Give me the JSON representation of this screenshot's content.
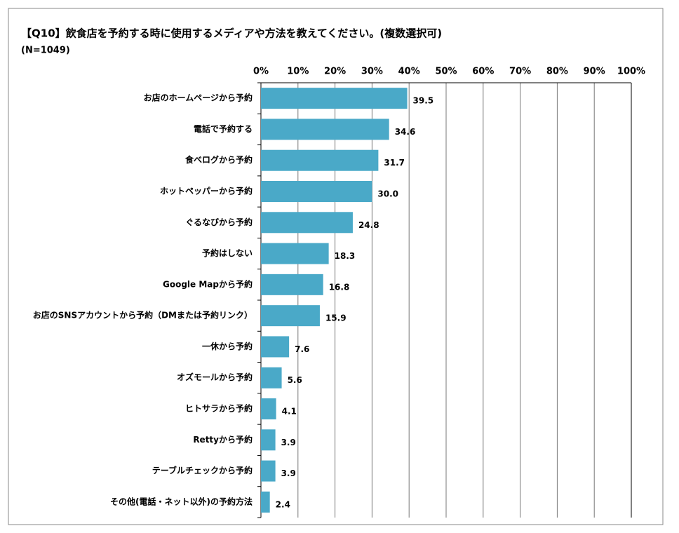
{
  "chart_data": {
    "type": "hbar",
    "title": "【Q10】飲食店を予約する時に使用するメディアや方法を教えてください。(複数選択可)",
    "subtitle": "(N=1049)",
    "categories": [
      "お店のホームページから予約",
      "電話で予約する",
      "食べログから予約",
      "ホットペッパーから予約",
      "ぐるなびから予約",
      "予約はしない",
      "Google Mapから予約",
      "お店のSNSアカウントから予約（DMまたは予約リンク）",
      "一休から予約",
      "オズモールから予約",
      "ヒトサラから予約",
      "Rettyから予約",
      "テーブルチェックから予約",
      "その他(電話・ネット以外)の予約方法"
    ],
    "values": [
      39.5,
      34.6,
      31.7,
      30.0,
      24.8,
      18.3,
      16.8,
      15.9,
      7.6,
      5.6,
      4.1,
      3.9,
      3.9,
      2.4
    ],
    "value_labels": [
      "39.5",
      "34.6",
      "31.7",
      "30.0",
      "24.8",
      "18.3",
      "16.8",
      "15.9",
      "7.6",
      "5.6",
      "4.1",
      "3.9",
      "3.9",
      "2.4"
    ],
    "color": "#4aa9c8",
    "xlim": [
      0,
      100
    ],
    "xticks": [
      {
        "value": 0,
        "label": "0%"
      },
      {
        "value": 10,
        "label": "10%"
      },
      {
        "value": 20,
        "label": "20%"
      },
      {
        "value": 30,
        "label": "30%"
      },
      {
        "value": 40,
        "label": "40%"
      },
      {
        "value": 50,
        "label": "50%"
      },
      {
        "value": 60,
        "label": "60%"
      },
      {
        "value": 70,
        "label": "70%"
      },
      {
        "value": 80,
        "label": "80%"
      },
      {
        "value": 90,
        "label": "90%"
      },
      {
        "value": 100,
        "label": "100%"
      }
    ],
    "grid": true
  }
}
